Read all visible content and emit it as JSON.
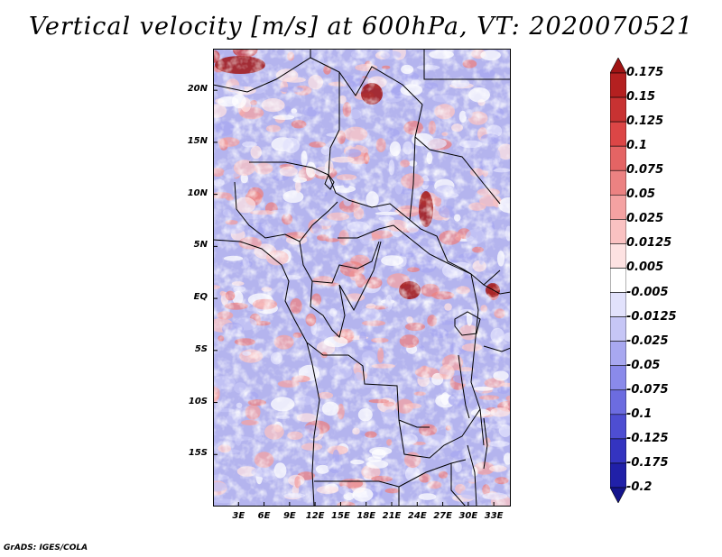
{
  "title": "Vertical velocity [m/s] at 600hPa, VT: 2020070521",
  "map": {
    "lon_range": [
      0,
      35
    ],
    "lat_range": [
      -20,
      24
    ],
    "lat_labels": [
      "20N",
      "15N",
      "10N",
      "5N",
      "EQ",
      "5S",
      "10S",
      "15S"
    ],
    "lat_values": [
      20,
      15,
      10,
      5,
      0,
      -5,
      -10,
      -15
    ],
    "lon_labels": [
      "3E",
      "6E",
      "9E",
      "12E",
      "15E",
      "18E",
      "21E",
      "24E",
      "27E",
      "30E",
      "33E"
    ],
    "lon_values": [
      3,
      6,
      9,
      12,
      15,
      18,
      21,
      24,
      27,
      30,
      33
    ]
  },
  "colorbar": {
    "labels": [
      "0.175",
      "0.15",
      "0.125",
      "0.1",
      "0.075",
      "0.05",
      "0.025",
      "0.0125",
      "0.005",
      "-0.005",
      "-0.0125",
      "-0.025",
      "-0.05",
      "-0.075",
      "-0.1",
      "-0.125",
      "-0.175",
      "-0.2"
    ],
    "colors": [
      "#a01414",
      "#b42020",
      "#c83232",
      "#dc4646",
      "#e46464",
      "#ec8282",
      "#f4a2a2",
      "#fac2c2",
      "#fde2e2",
      "#ffffff",
      "#e2e2fc",
      "#c6c6f6",
      "#a8a8f0",
      "#8a8aea",
      "#6c6ce0",
      "#4e4ed2",
      "#3434c0",
      "#2020a8",
      "#14148c"
    ]
  },
  "credit": "GrADS: IGES/COLA"
}
